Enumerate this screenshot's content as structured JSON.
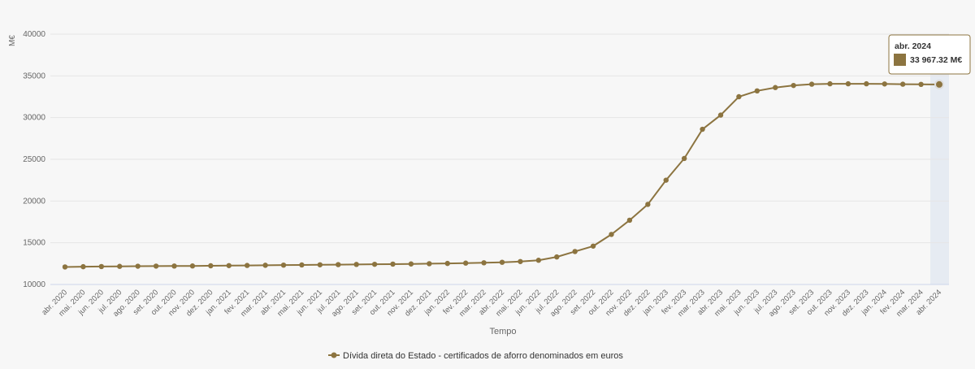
{
  "chart_data": {
    "type": "line",
    "y_label": "M€",
    "x_label": "Tempo",
    "categories": [
      "abr. 2020",
      "mai. 2020",
      "jun. 2020",
      "jul. 2020",
      "ago. 2020",
      "set. 2020",
      "out. 2020",
      "nov. 2020",
      "dez. 2020",
      "jan. 2021",
      "fev. 2021",
      "mar. 2021",
      "abr. 2021",
      "mai. 2021",
      "jun. 2021",
      "jul. 2021",
      "ago. 2021",
      "set. 2021",
      "out. 2021",
      "nov. 2021",
      "dez. 2021",
      "jan. 2022",
      "fev. 2022",
      "mar. 2022",
      "abr. 2022",
      "mai. 2022",
      "jun. 2022",
      "jul. 2022",
      "ago. 2022",
      "set. 2022",
      "out. 2022",
      "nov. 2022",
      "dez. 2022",
      "jan. 2023",
      "fev. 2023",
      "mar. 2023",
      "abr. 2023",
      "mai. 2023",
      "jun. 2023",
      "jul. 2023",
      "ago. 2023",
      "set. 2023",
      "out. 2023",
      "nov. 2023",
      "dez. 2023",
      "jan. 2024",
      "fev. 2024",
      "mar. 2024",
      "abr. 2024"
    ],
    "series": [
      {
        "name": "Dívida direta do Estado - certificados de aforro denominados em euros",
        "color": "#8c7440",
        "values": [
          12100,
          12130,
          12150,
          12170,
          12190,
          12200,
          12210,
          12220,
          12240,
          12260,
          12280,
          12300,
          12320,
          12340,
          12360,
          12380,
          12400,
          12420,
          12440,
          12460,
          12490,
          12520,
          12560,
          12600,
          12660,
          12750,
          12900,
          13300,
          13950,
          14600,
          16000,
          17700,
          19600,
          22500,
          25100,
          28600,
          30300,
          32500,
          33200,
          33600,
          33850,
          34000,
          34050,
          34050,
          34050,
          34030,
          34000,
          33980,
          33967.32
        ]
      }
    ],
    "tooltip_label": "33 967.32 M€",
    "ylim": [
      10000,
      40000
    ],
    "yticks": [
      10000,
      15000,
      20000,
      25000,
      30000,
      35000,
      40000
    ],
    "grid": true
  }
}
